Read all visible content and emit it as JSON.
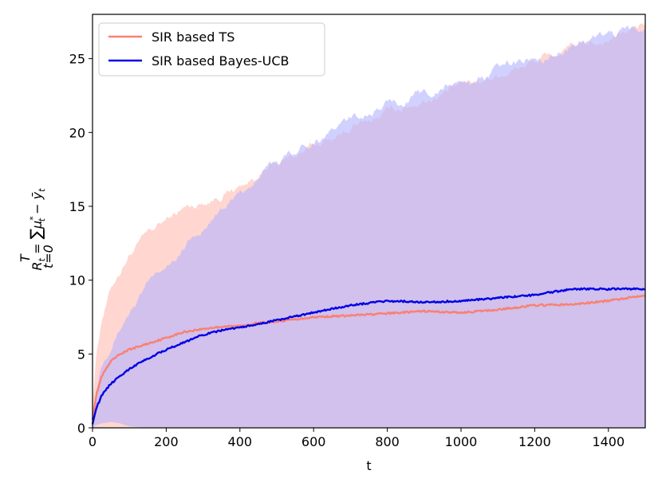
{
  "chart_data": {
    "type": "line",
    "title": "",
    "xlabel": "t",
    "ylabel": "R_t = Σ_{t=0}^{T} μ*_t − ȳ_t",
    "ylabel_parts": {
      "lhs": "R",
      "lhs_sub": "t",
      "eq": " = ",
      "sum": "∑",
      "sum_top": "T",
      "sum_bottom": "t=0",
      "mu": "μ",
      "mu_sup": "*",
      "mu_sub": "t",
      "minus": " − ",
      "ybar": "ȳ",
      "ybar_sub": "t"
    },
    "xlim": [
      0,
      1500
    ],
    "ylim": [
      0,
      28
    ],
    "xticks": [
      0,
      200,
      400,
      600,
      800,
      1000,
      1200,
      1400
    ],
    "yticks": [
      0,
      5,
      10,
      15,
      20,
      25
    ],
    "grid": false,
    "legend_position": "top-left",
    "series": [
      {
        "name": "SIR based TS",
        "color": "#fa8072",
        "band_color": "#ffc8c0",
        "x": [
          0,
          10,
          25,
          50,
          75,
          100,
          150,
          200,
          250,
          300,
          350,
          400,
          450,
          500,
          600,
          700,
          800,
          900,
          1000,
          1100,
          1200,
          1300,
          1400,
          1500
        ],
        "mean": [
          0.6,
          2.2,
          3.5,
          4.5,
          5.0,
          5.3,
          5.7,
          6.1,
          6.5,
          6.7,
          6.85,
          6.9,
          7.1,
          7.2,
          7.5,
          7.6,
          7.75,
          7.9,
          7.8,
          8.0,
          8.3,
          8.35,
          8.6,
          9.0
        ],
        "upper": [
          1.8,
          5.0,
          7.5,
          9.5,
          10.7,
          11.8,
          13.0,
          14.0,
          14.8,
          15.3,
          15.9,
          16.4,
          17.1,
          17.8,
          19.0,
          20.2,
          21.3,
          22.3,
          23.1,
          24.0,
          24.8,
          25.6,
          26.3,
          27.3
        ],
        "lower": [
          0,
          0,
          0,
          0,
          0,
          0,
          0,
          0,
          0,
          0,
          0,
          0,
          0,
          0,
          0,
          0,
          0,
          0,
          0,
          0,
          0,
          0,
          0,
          0
        ]
      },
      {
        "name": "SIR based Bayes-UCB",
        "color": "#0000e6",
        "band_color": "#b3b3ff",
        "x": [
          0,
          10,
          25,
          50,
          75,
          100,
          150,
          200,
          250,
          300,
          350,
          400,
          450,
          500,
          600,
          700,
          800,
          900,
          1000,
          1100,
          1200,
          1300,
          1400,
          1500
        ],
        "mean": [
          0.3,
          1.3,
          2.2,
          3.0,
          3.5,
          4.0,
          4.7,
          5.3,
          5.8,
          6.3,
          6.6,
          6.8,
          7.0,
          7.3,
          7.8,
          8.3,
          8.6,
          8.5,
          8.6,
          8.8,
          9.0,
          9.4,
          9.4,
          9.4
        ],
        "upper": [
          0.8,
          2.8,
          4.5,
          6.0,
          7.0,
          8.0,
          9.6,
          11.0,
          12.3,
          13.5,
          14.7,
          15.8,
          16.9,
          18.0,
          19.6,
          20.8,
          21.9,
          22.7,
          23.4,
          24.2,
          25.1,
          25.9,
          26.6,
          26.9
        ],
        "lower": [
          0,
          0.2,
          0.3,
          0.4,
          0.3,
          0.1,
          0,
          0,
          0,
          0,
          0,
          0,
          0,
          0,
          0,
          0,
          0,
          0,
          0,
          0,
          0,
          0,
          0,
          0
        ]
      }
    ]
  }
}
